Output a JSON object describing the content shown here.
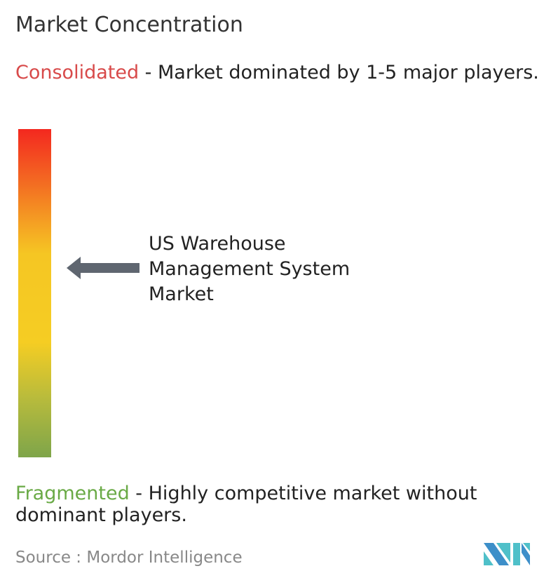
{
  "title": "Market Concentration",
  "consolidated": {
    "label": "Consolidated",
    "description": " - Market dominated by 1-5 major players.",
    "color": "#d84a4a"
  },
  "fragmented": {
    "label": "Fragmented",
    "description": " - Highly competitive market without dominant players.",
    "color": "#6aaa46"
  },
  "market_label": "US Warehouse Management System Market",
  "concentration_level": 0.58,
  "source": "Source :  Mordor Intelligence",
  "logo": "Mordor Intelligence"
}
